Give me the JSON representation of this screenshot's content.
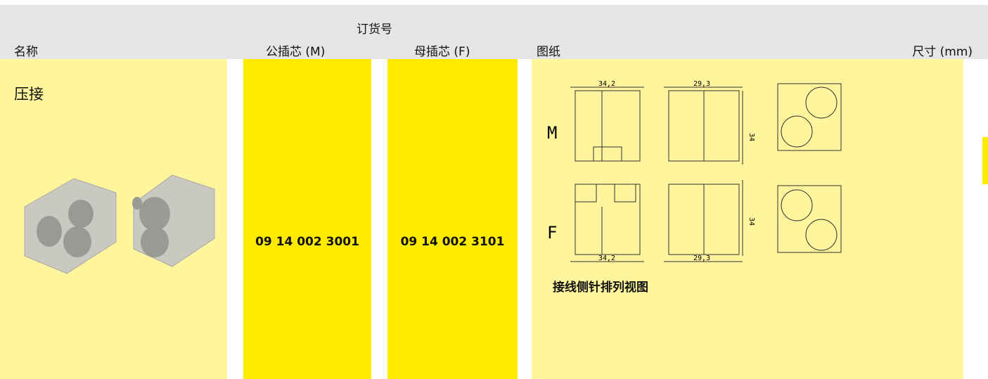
{
  "header": {
    "group_label": "订货号",
    "columns": [
      "名称",
      "公插芯 (M)",
      "母插芯 (F)",
      "图纸",
      "尺寸 (mm)"
    ]
  },
  "row": {
    "name": "压接",
    "male_part": "09 14 002 3001",
    "female_part": "09 14 002 3101",
    "drawing": {
      "male_label": "M",
      "female_label": "F",
      "male_dims": [
        "34,2",
        "29,3",
        "34"
      ],
      "female_dims": [
        "34",
        "34,2",
        "29,3"
      ],
      "caption": "接线侧针排列视图"
    }
  }
}
